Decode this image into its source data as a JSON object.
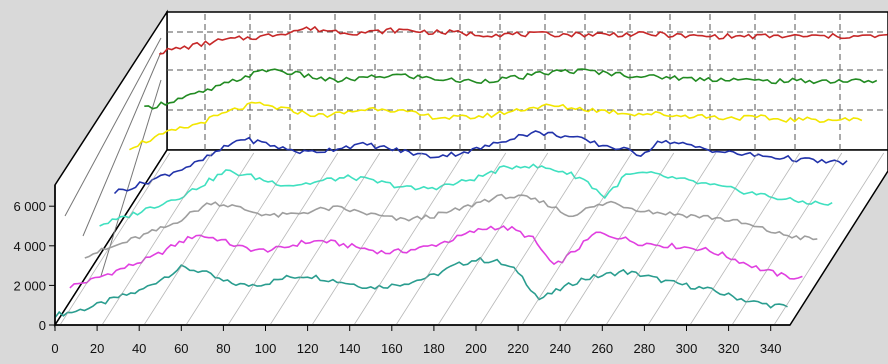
{
  "chart_data": {
    "type": "line",
    "subtype": "3d-waterfall",
    "title": "",
    "xlabel": "",
    "ylabel": "",
    "xlim": [
      0,
      350
    ],
    "ylim": [
      0,
      7000
    ],
    "grid": true,
    "x_ticks": [
      "0",
      "20",
      "40",
      "60",
      "80",
      "100",
      "120",
      "140",
      "160",
      "180",
      "200",
      "220",
      "240",
      "260",
      "280",
      "300",
      "320",
      "340"
    ],
    "y_ticks": [
      "0",
      "2 000",
      "4 000",
      "6 000"
    ],
    "x": [
      0,
      10,
      20,
      30,
      40,
      50,
      60,
      70,
      80,
      90,
      100,
      110,
      120,
      130,
      140,
      150,
      160,
      170,
      180,
      190,
      200,
      210,
      220,
      230,
      240,
      250,
      260,
      270,
      280,
      290,
      300,
      310,
      320,
      330,
      340,
      350
    ],
    "series": [
      {
        "color": "#2a9d8f",
        "values": [
          500,
          700,
          1000,
          1400,
          1700,
          2300,
          2900,
          2700,
          2200,
          2000,
          2100,
          2400,
          2500,
          2300,
          2100,
          1900,
          2000,
          2200,
          2500,
          3000,
          3300,
          3200,
          2700,
          1300,
          1800,
          2300,
          2500,
          2700,
          2500,
          2200,
          2000,
          1800,
          1500,
          1200,
          1000,
          900
        ]
      },
      {
        "color": "#e040e0",
        "values": [
          800,
          1100,
          1500,
          1900,
          2300,
          2900,
          3400,
          3200,
          2800,
          2600,
          2700,
          3000,
          3100,
          2900,
          2700,
          2500,
          2600,
          2800,
          3100,
          3500,
          3800,
          3700,
          3200,
          1800,
          2600,
          3500,
          3300,
          3000,
          2900,
          2800,
          2700,
          2400,
          2000,
          1600,
          1300,
          1200
        ]
      },
      {
        "color": "#9e9e9e",
        "values": [
          1200,
          1500,
          1900,
          2300,
          2700,
          3300,
          3900,
          3700,
          3400,
          3200,
          3300,
          3500,
          3600,
          3400,
          3200,
          3000,
          3100,
          3300,
          3600,
          4000,
          4200,
          4100,
          3800,
          3200,
          3600,
          3900,
          3600,
          3400,
          3300,
          3200,
          3100,
          2900,
          2600,
          2300,
          2100,
          2000
        ]
      },
      {
        "color": "#40e0c0",
        "values": [
          1600,
          1900,
          2300,
          2700,
          3100,
          3700,
          4300,
          4100,
          3800,
          3600,
          3700,
          3900,
          4000,
          3800,
          3600,
          3400,
          3500,
          3700,
          4000,
          4400,
          4600,
          4500,
          4300,
          3900,
          3000,
          4100,
          4200,
          4000,
          3800,
          3600,
          3400,
          3200,
          3000,
          2800,
          2700,
          2600
        ]
      },
      {
        "color": "#2233aa",
        "values": [
          2100,
          2400,
          2800,
          3200,
          3600,
          4200,
          4800,
          4600,
          4300,
          4100,
          4200,
          4400,
          4500,
          4300,
          4100,
          3900,
          4000,
          4200,
          4500,
          4900,
          5100,
          5000,
          4800,
          4500,
          4300,
          4000,
          4700,
          4500,
          4300,
          4100,
          4000,
          3900,
          3800,
          3700,
          3600,
          3600
        ]
      },
      {
        "color": "#f2e600",
        "values": [
          3200,
          3600,
          4000,
          4300,
          4700,
          5100,
          5400,
          5200,
          5000,
          4800,
          4900,
          5100,
          5200,
          5000,
          4800,
          4700,
          4700,
          4800,
          5000,
          5200,
          5300,
          5200,
          5100,
          5000,
          4900,
          4900,
          4800,
          4800,
          4700,
          4700,
          4700,
          4600,
          4600,
          4600,
          4600,
          4600
        ]
      },
      {
        "color": "#228b22",
        "values": [
          4000,
          4300,
          4600,
          4900,
          5300,
          5700,
          6000,
          5800,
          5600,
          5400,
          5500,
          5600,
          5700,
          5600,
          5500,
          5400,
          5400,
          5500,
          5600,
          5800,
          5900,
          5900,
          5800,
          5700,
          5600,
          5600,
          5500,
          5500,
          5500,
          5400,
          5400,
          5400,
          5400,
          5400,
          5400,
          5400
        ]
      },
      {
        "color": "#c62828",
        "values": [
          5700,
          5900,
          6100,
          6300,
          6400,
          6500,
          6700,
          6900,
          6800,
          6700,
          6700,
          6800,
          6800,
          6700,
          6700,
          6600,
          6600,
          6600,
          6600,
          6600,
          6600,
          6600,
          6600,
          6600,
          6600,
          6500,
          6500,
          6500,
          6500,
          6500,
          6500,
          6500,
          6500,
          6500,
          6500,
          6500
        ]
      }
    ]
  }
}
